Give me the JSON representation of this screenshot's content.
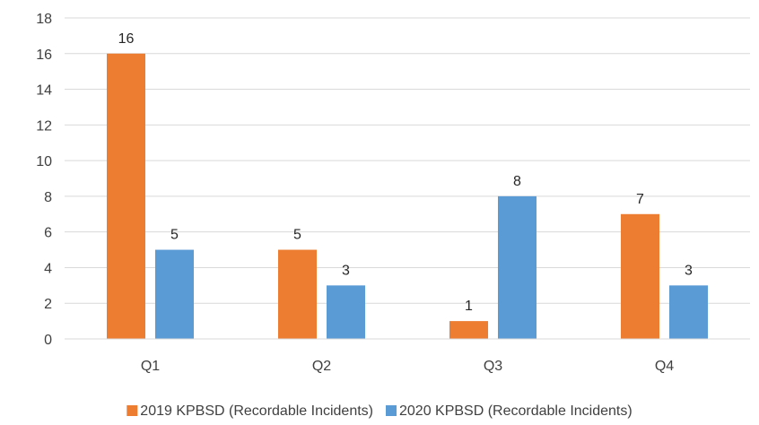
{
  "chart_data": {
    "type": "bar",
    "title": "",
    "xlabel": "",
    "ylabel": "",
    "categories": [
      "Q1",
      "Q2",
      "Q3",
      "Q4"
    ],
    "series": [
      {
        "name": "2019 KPBSD (Recordable Incidents)",
        "values": [
          16,
          5,
          1,
          7
        ],
        "color": "#ED7D31"
      },
      {
        "name": "2020 KPBSD (Recordable Incidents)",
        "values": [
          5,
          3,
          8,
          3
        ],
        "color": "#5B9BD5"
      }
    ],
    "ylim": [
      0,
      18
    ],
    "y_ticks": [
      "0",
      "2",
      "4",
      "6",
      "8",
      "10",
      "12",
      "14",
      "16",
      "18"
    ],
    "grid": true,
    "grid_color": "#D9D9D9",
    "data_labels": true,
    "legend_position": "bottom"
  }
}
